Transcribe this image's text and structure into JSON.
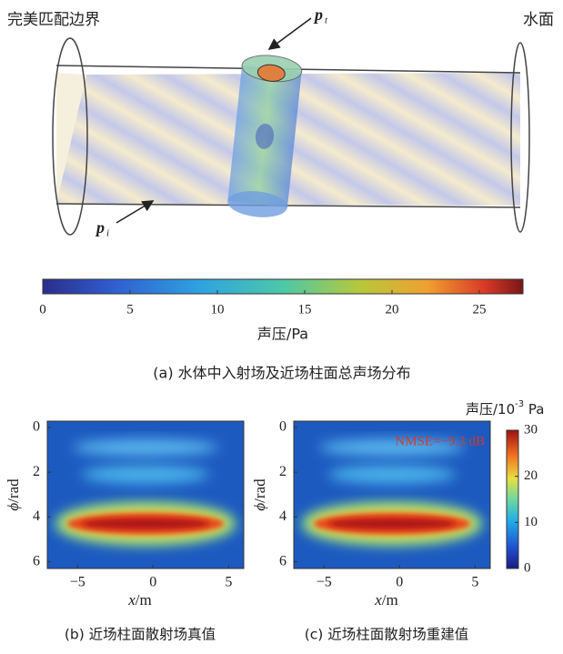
{
  "top": {
    "label_left": "完美匹配边界",
    "label_right": "水面",
    "pt_symbol": "p",
    "pt_sub": "t",
    "pi_symbol": "p",
    "pi_sub": "i",
    "colorbar": {
      "lim": [
        0,
        27.5
      ],
      "ticks": [
        0,
        5,
        10,
        15,
        20,
        25
      ],
      "label": "声压/Pa"
    },
    "caption": "(a) 水体中入射场及近场柱面总声场分布"
  },
  "bottom": {
    "xlim": [
      -7,
      6
    ],
    "xticks": [
      {
        "value": -5,
        "label": "−5"
      },
      0,
      5
    ],
    "ylim": [
      -0.28,
      6.3
    ],
    "yticks": [
      0,
      2,
      4,
      6
    ],
    "x_label_var": "x",
    "x_label_unit": "/m",
    "y_label_var": "ϕ",
    "y_label_unit": "/rad",
    "panels": [
      {
        "caption": "(b) 近场柱面散射场真值"
      },
      {
        "caption": "(c) 近场柱面散射场重建值",
        "annotation": "NMSE=−9.3 dB"
      }
    ],
    "colorbar": {
      "lim": [
        0,
        30
      ],
      "ticks": [
        0,
        10,
        20,
        30
      ],
      "label_main": "声压/10",
      "label_exp": "-3",
      "label_unit": " Pa"
    }
  }
}
